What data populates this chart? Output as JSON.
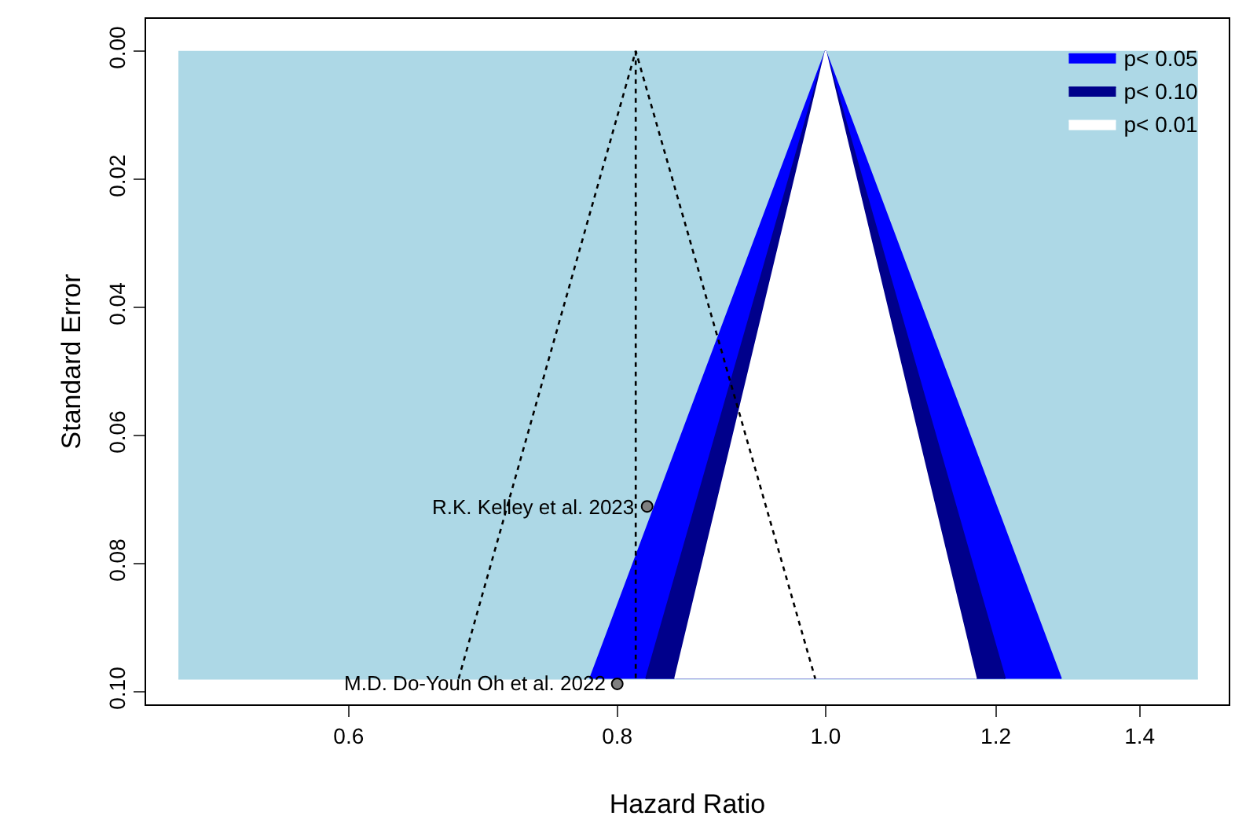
{
  "chart_data": {
    "type": "area",
    "xlabel": "Hazard Ratio",
    "ylabel": "Standard Error",
    "log": "x",
    "grid": false,
    "legend": "top right",
    "xlim": [
      0.483,
      1.54
    ],
    "ylim": [
      0.102,
      -0.005
    ],
    "xticks": [
      0.6,
      0.8,
      {
        "value": 1,
        "label": "1.0"
      },
      1.2,
      1.4
    ],
    "yticks": [
      {
        "value": 0,
        "label": "0.00"
      },
      {
        "value": 0.02,
        "label": "0.02"
      },
      {
        "value": 0.04,
        "label": "0.04"
      },
      {
        "value": 0.06,
        "label": "0.06"
      },
      {
        "value": 0.08,
        "label": "0.08"
      },
      {
        "value": 0.1,
        "label": "0.10"
      }
    ],
    "series": [
      {
        "color": "#add8e6",
        "x": [
          0.5,
          1.49
        ],
        "values": [
          0.098,
          0.098
        ]
      },
      {
        "name": "p< 0.05",
        "color": "#0000ff",
        "x": [
          0.777,
          1,
          1.287
        ],
        "values": [
          0.098,
          0,
          0.098
        ]
      },
      {
        "name": "p< 0.10",
        "color": "#00008b",
        "x": [
          0.825,
          1,
          1.212
        ],
        "values": [
          0.098,
          0,
          0.098
        ]
      },
      {
        "name": "p< 0.01",
        "color": "#ffffff",
        "x": [
          0.851,
          1,
          1.175
        ],
        "values": [
          0.098,
          0,
          0.098
        ]
      },
      {
        "type": "line",
        "color": "#000000",
        "line_style": "dotted",
        "x": [
          0.675,
          0.816,
          0.989
        ],
        "values": [
          0.098,
          0,
          0.098
        ]
      },
      {
        "type": "line",
        "color": "#000000",
        "line_style": "dotted",
        "x": [
          0.816,
          0.816
        ],
        "values": [
          0,
          0.098
        ]
      },
      {
        "type": "scatter",
        "color": "#808080",
        "marker": "circle",
        "x": [
          0.826,
          0.8
        ],
        "values": [
          0.0711,
          0.0988
        ]
      }
    ],
    "annotations": [
      {
        "text": "R.K. Kelley et al. 2023",
        "x": 0.826,
        "y": 0.0711
      },
      {
        "text": "M.D. Do-Youn Oh et al. 2022",
        "x": 0.8,
        "y": 0.0988
      }
    ]
  }
}
